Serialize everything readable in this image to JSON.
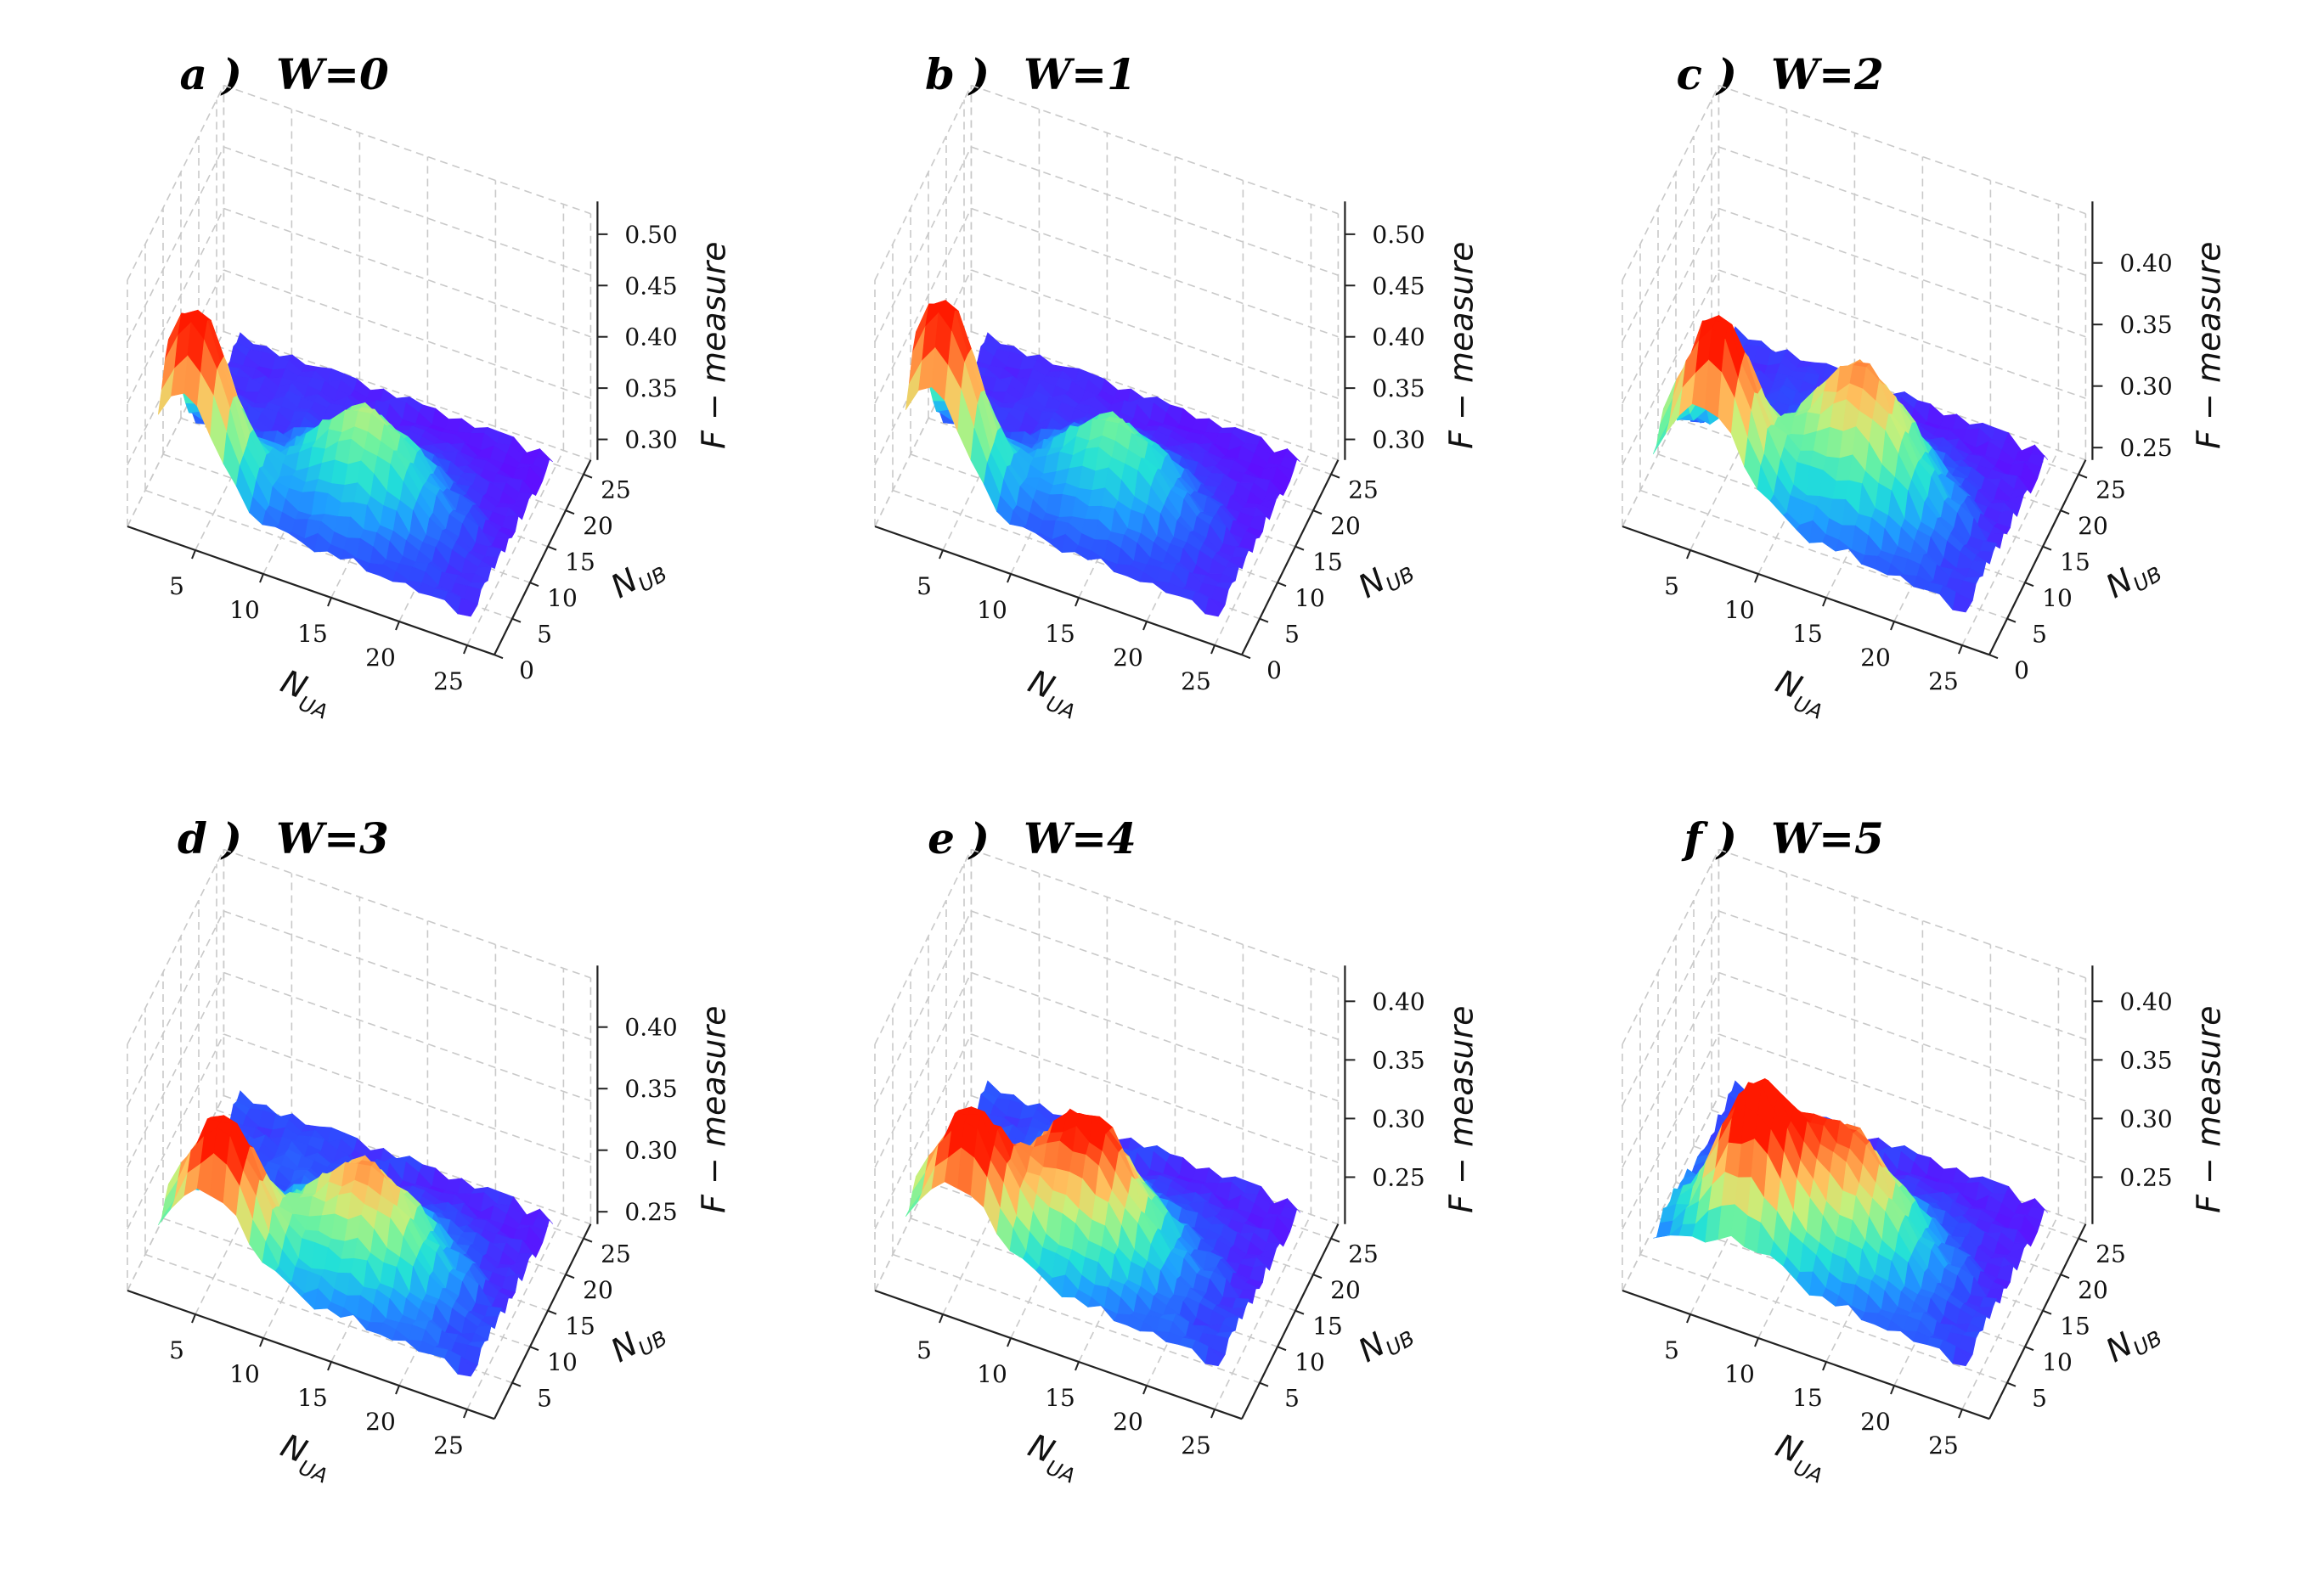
{
  "colormap": [
    "#6a00ff",
    "#2f4bff",
    "#1fa0ff",
    "#22e0d8",
    "#6cf2a0",
    "#c8f07a",
    "#ffc15e",
    "#ff7a34",
    "#ff1a00"
  ],
  "chart_data": [
    {
      "type": "surface",
      "letter": "a )",
      "title": "W=0",
      "xlabel": "N_UA",
      "xlabel_main": "N",
      "xlabel_sub": "UA",
      "ylabel": "N_UB",
      "ylabel_main": "N",
      "ylabel_sub": "UB",
      "zlabel": "F − measure",
      "xticks": [
        "5",
        "10",
        "15",
        "20",
        "25"
      ],
      "yticks": [
        "0",
        "5",
        "10",
        "15",
        "20",
        "25"
      ],
      "zticks": [
        "0.30",
        "0.35",
        "0.40",
        "0.45",
        "0.50"
      ],
      "zlim": [
        0.28,
        0.52
      ],
      "peak": {
        "NUA": 4,
        "NUB": 4,
        "F": 0.46
      },
      "ridge": {
        "NUA": 15,
        "NUB": 10,
        "F": 0.38
      },
      "edge_min": {
        "NUA": 25,
        "NUB": 25,
        "F": 0.29
      }
    },
    {
      "type": "surface",
      "letter": "b )",
      "title": "W=1",
      "xlabel": "N_UA",
      "xlabel_main": "N",
      "xlabel_sub": "UA",
      "ylabel": "N_UB",
      "ylabel_main": "N",
      "ylabel_sub": "UB",
      "zlabel": "F − measure",
      "xticks": [
        "5",
        "10",
        "15",
        "20",
        "25"
      ],
      "yticks": [
        "0",
        "5",
        "10",
        "15",
        "20",
        "25"
      ],
      "zticks": [
        "0.30",
        "0.35",
        "0.40",
        "0.45",
        "0.50"
      ],
      "zlim": [
        0.28,
        0.52
      ],
      "peak": {
        "NUA": 4,
        "NUB": 4,
        "F": 0.47
      },
      "ridge": {
        "NUA": 15,
        "NUB": 10,
        "F": 0.37
      },
      "edge_min": {
        "NUA": 25,
        "NUB": 25,
        "F": 0.29
      }
    },
    {
      "type": "surface",
      "letter": "c )",
      "title": "W=2",
      "xlabel": "N_UA",
      "xlabel_main": "N",
      "xlabel_sub": "UA",
      "ylabel": "N_UB",
      "ylabel_main": "N",
      "ylabel_sub": "UB",
      "zlabel": "F − measure",
      "xticks": [
        "5",
        "10",
        "15",
        "20",
        "25"
      ],
      "yticks": [
        "0",
        "5",
        "10",
        "15",
        "20",
        "25"
      ],
      "zticks": [
        "0.25",
        "0.30",
        "0.35",
        "0.40"
      ],
      "zlim": [
        0.24,
        0.44
      ],
      "peak": {
        "NUA": 6,
        "NUB": 4,
        "F": 0.39
      },
      "ridge": {
        "NUA": 15,
        "NUB": 10,
        "F": 0.36
      },
      "edge_min": {
        "NUA": 25,
        "NUB": 25,
        "F": 0.25
      }
    },
    {
      "type": "surface",
      "letter": "d )",
      "title": "W=3",
      "xlabel": "N_UA",
      "xlabel_main": "N",
      "xlabel_sub": "UA",
      "ylabel": "N_UB",
      "ylabel_main": "N",
      "ylabel_sub": "UB",
      "zlabel": "F − measure",
      "xticks": [
        "5",
        "10",
        "15",
        "20",
        "25"
      ],
      "yticks": [
        "5",
        "10",
        "15",
        "20",
        "25"
      ],
      "zticks": [
        "0.25",
        "0.30",
        "0.35",
        "0.40"
      ],
      "zlim": [
        0.24,
        0.44
      ],
      "peak": {
        "NUA": 6,
        "NUB": 4,
        "F": 0.36
      },
      "ridge": {
        "NUA": 15,
        "NUB": 10,
        "F": 0.33
      },
      "edge_min": {
        "NUA": 25,
        "NUB": 25,
        "F": 0.25
      }
    },
    {
      "type": "surface",
      "letter": "e )",
      "title": "W=4",
      "xlabel": "N_UA",
      "xlabel_main": "N",
      "xlabel_sub": "UA",
      "ylabel": "N_UB",
      "ylabel_main": "N",
      "ylabel_sub": "UB",
      "zlabel": "F − measure",
      "xticks": [
        "5",
        "10",
        "15",
        "20",
        "25"
      ],
      "yticks": [
        "5",
        "10",
        "15",
        "20",
        "25"
      ],
      "zticks": [
        "0.25",
        "0.30",
        "0.35",
        "0.40"
      ],
      "zlim": [
        0.21,
        0.42
      ],
      "peak": {
        "NUA": 6,
        "NUB": 4,
        "F": 0.34
      },
      "ridge": {
        "NUA": 13,
        "NUB": 10,
        "F": 0.34
      },
      "edge_min": {
        "NUA": 25,
        "NUB": 25,
        "F": 0.23
      }
    },
    {
      "type": "surface",
      "letter": "f )",
      "title": "W=5",
      "xlabel": "N_UA",
      "xlabel_main": "N",
      "xlabel_sub": "UA",
      "ylabel": "N_UB",
      "ylabel_main": "N",
      "ylabel_sub": "UB",
      "zlabel": "F − measure",
      "xticks": [
        "5",
        "10",
        "15",
        "20",
        "25"
      ],
      "yticks": [
        "5",
        "10",
        "15",
        "20",
        "25"
      ],
      "zticks": [
        "0.25",
        "0.30",
        "0.35",
        "0.40"
      ],
      "zlim": [
        0.21,
        0.42
      ],
      "peak": {
        "NUA": 8,
        "NUB": 6,
        "F": 0.35
      },
      "ridge": {
        "NUA": 14,
        "NUB": 10,
        "F": 0.33
      },
      "edge_min": {
        "NUA": 25,
        "NUB": 25,
        "F": 0.23
      }
    }
  ]
}
